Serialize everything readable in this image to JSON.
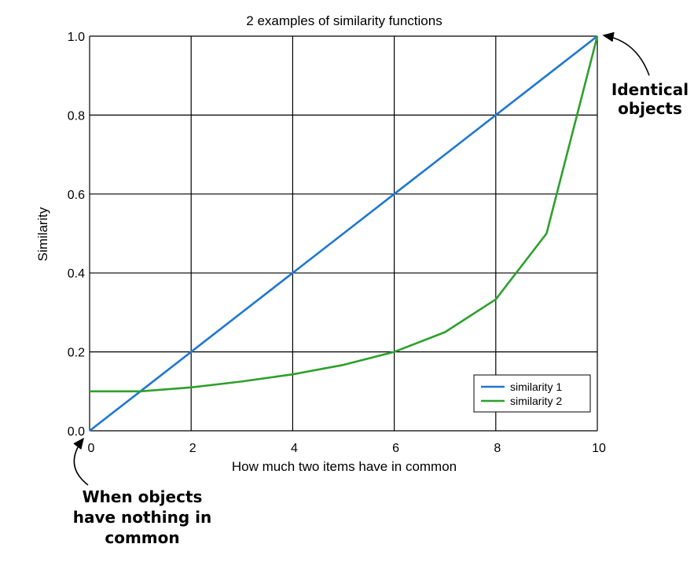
{
  "chart_data": {
    "type": "line",
    "title": "2 examples of similarity functions",
    "xlabel": "How much two items have in common",
    "ylabel": "Similarity",
    "xlim": [
      0,
      10
    ],
    "ylim": [
      0.0,
      1.0
    ],
    "x_ticks": [
      "0",
      "2",
      "4",
      "6",
      "8",
      "10"
    ],
    "y_ticks": [
      "0.0",
      "0.2",
      "0.4",
      "0.6",
      "0.8",
      "1.0"
    ],
    "grid": true,
    "legend_position": "lower-right",
    "series": [
      {
        "name": "similarity 1",
        "color": "#1f77d0",
        "x": [
          0,
          1,
          2,
          3,
          4,
          5,
          6,
          7,
          8,
          9,
          10
        ],
        "y": [
          0.0,
          0.1,
          0.2,
          0.3,
          0.4,
          0.5,
          0.6,
          0.7,
          0.8,
          0.9,
          1.0
        ]
      },
      {
        "name": "similarity 2",
        "color": "#2ca02c",
        "x": [
          0,
          1,
          2,
          3,
          4,
          5,
          6,
          7,
          8,
          9,
          10
        ],
        "y": [
          0.1,
          0.1,
          0.11,
          0.125,
          0.143,
          0.167,
          0.2,
          0.25,
          0.333,
          0.5,
          1.0
        ]
      }
    ],
    "annotations": [
      {
        "lines": [
          "Identical",
          "objects"
        ],
        "points_to": [
          10,
          1.0
        ]
      },
      {
        "lines": [
          "When objects",
          "have nothing in",
          "common"
        ],
        "points_to": [
          0,
          0.0
        ]
      }
    ]
  }
}
